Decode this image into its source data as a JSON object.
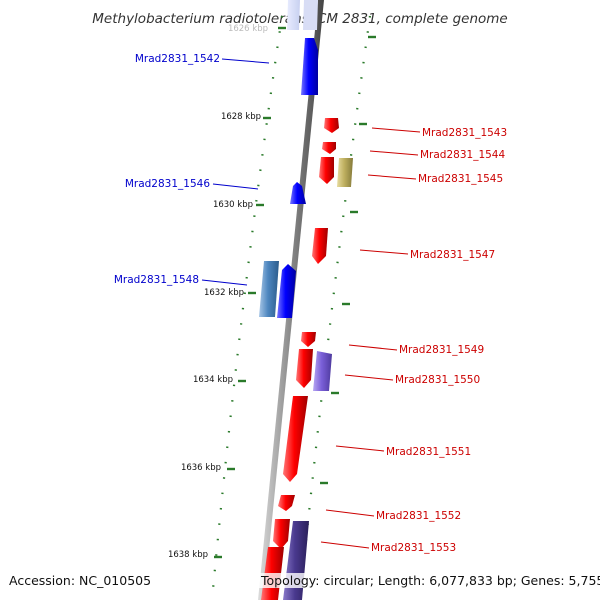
{
  "title": "Methylobacterium radiotolerans JCM 2831, complete genome",
  "footer": {
    "accession": "Accession: NC_010505",
    "topology": "Topology: circular; Length: 6,077,833 bp; Genes: 5,755"
  },
  "scale_labels": [
    "1626 kbp",
    "1628 kbp",
    "1630 kbp",
    "1632 kbp",
    "1634 kbp",
    "1636 kbp",
    "1638 kbp"
  ],
  "colors": {
    "forward_strand": "#ff0000",
    "reverse_strand": "#0000ff",
    "steelblue_feature": "#4d86bf",
    "olive_feature": "#bfb060",
    "purple_feature": "#7a5fd8",
    "darkpurple_feature": "#4a3a8f",
    "backbone": "#888888",
    "tick_marks": "#2a7a2a",
    "label_left": "#0000cc",
    "label_right": "#cc0000"
  },
  "genes_left": [
    {
      "id": "Mrad2831_1542",
      "strand": "reverse"
    },
    {
      "id": "Mrad2831_1546",
      "strand": "reverse"
    },
    {
      "id": "Mrad2831_1548",
      "strand": "reverse"
    }
  ],
  "genes_right": [
    {
      "id": "Mrad2831_1543",
      "strand": "forward"
    },
    {
      "id": "Mrad2831_1544",
      "strand": "forward"
    },
    {
      "id": "Mrad2831_1545",
      "strand": "forward"
    },
    {
      "id": "Mrad2831_1547",
      "strand": "forward"
    },
    {
      "id": "Mrad2831_1549",
      "strand": "forward"
    },
    {
      "id": "Mrad2831_1550",
      "strand": "forward"
    },
    {
      "id": "Mrad2831_1551",
      "strand": "forward"
    },
    {
      "id": "Mrad2831_1552",
      "strand": "forward"
    },
    {
      "id": "Mrad2831_1553",
      "strand": "forward"
    }
  ]
}
